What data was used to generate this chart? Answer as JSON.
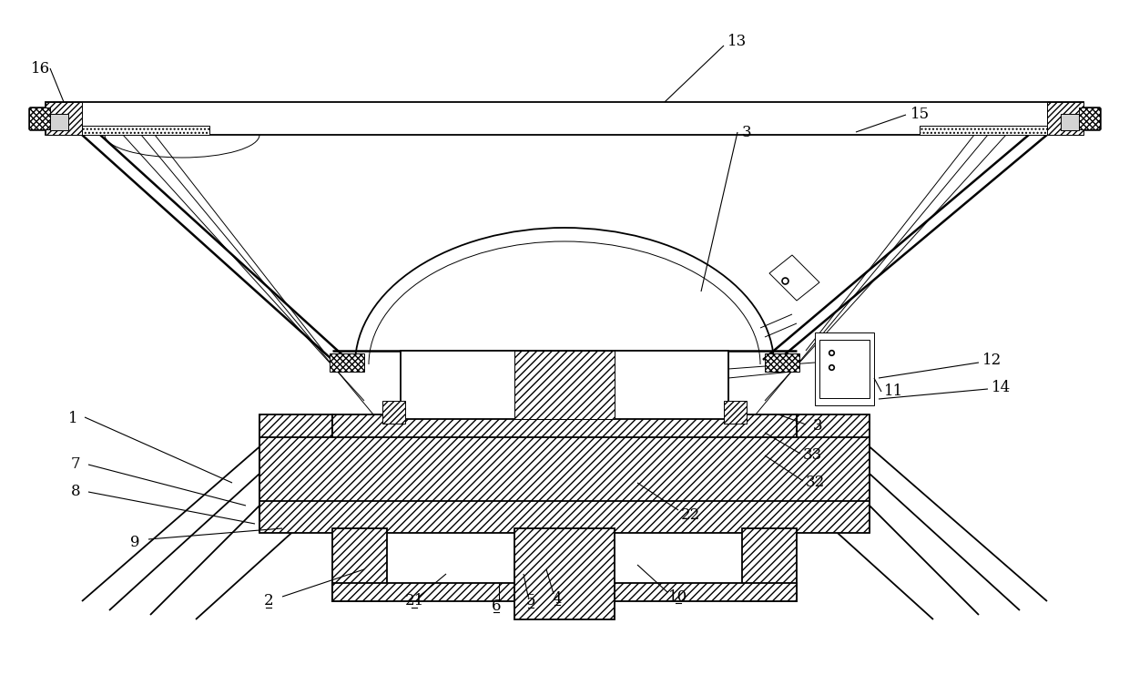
{
  "bg_color": "#ffffff",
  "lc": "#000000",
  "lw_main": 1.3,
  "lw_thin": 0.7,
  "lw_thick": 1.8,
  "fig_width": 12.4,
  "fig_height": 7.41,
  "dpi": 100
}
